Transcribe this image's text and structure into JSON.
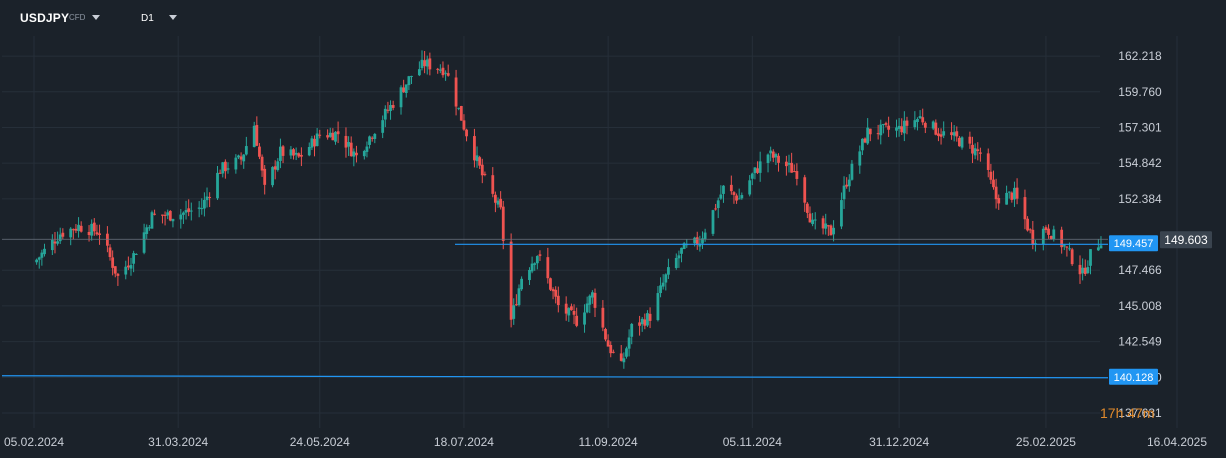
{
  "toolbar": {
    "symbol": "USDJPY",
    "symbol_type": "CFD",
    "timeframe": "D1"
  },
  "chart_data": {
    "type": "candlestick",
    "title": "",
    "xlabel": "",
    "ylabel": "",
    "ylim": [
      136.6,
      163.6
    ],
    "y_ticks": [
      "162.218",
      "159.760",
      "157.301",
      "154.842",
      "152.384",
      "147.466",
      "145.008",
      "142.549",
      "140.090",
      "137.631"
    ],
    "x_ticks": [
      "05.02.2024",
      "31.03.2024",
      "24.05.2024",
      "18.07.2024",
      "11.09.2024",
      "05.11.2024",
      "31.12.2024",
      "25.02.2025",
      "16.04.2025"
    ],
    "current_price": "149.603",
    "horizontal_lines": [
      {
        "label": "149.457",
        "value": 149.457
      },
      {
        "label": "140.128",
        "value": 140.128
      }
    ],
    "colors": {
      "up": "#26a69a",
      "down": "#ef5350",
      "level": "#2196f3",
      "background": "#1b222a"
    },
    "close_path": [
      [
        "05.02.2024",
        148.0
      ],
      [
        "15.02.2024",
        150.0
      ],
      [
        "22.02.2024",
        150.5
      ],
      [
        "01.03.2024",
        150.1
      ],
      [
        "08.03.2024",
        147.0
      ],
      [
        "14.03.2024",
        148.5
      ],
      [
        "21.03.2024",
        151.2
      ],
      [
        "31.03.2024",
        151.3
      ],
      [
        "09.04.2024",
        151.8
      ],
      [
        "16.04.2024",
        154.4
      ],
      [
        "24.04.2024",
        155.1
      ],
      [
        "29.04.2024",
        157.5
      ],
      [
        "03.05.2024",
        153.0
      ],
      [
        "09.05.2024",
        155.6
      ],
      [
        "16.05.2024",
        155.2
      ],
      [
        "24.05.2024",
        156.8
      ],
      [
        "31.05.2024",
        156.9
      ],
      [
        "07.06.2024",
        155.3
      ],
      [
        "14.06.2024",
        157.2
      ],
      [
        "21.06.2024",
        159.0
      ],
      [
        "28.06.2024",
        160.9
      ],
      [
        "03.07.2024",
        161.7
      ],
      [
        "11.07.2024",
        161.3
      ],
      [
        "18.07.2024",
        157.4
      ],
      [
        "25.07.2024",
        154.0
      ],
      [
        "01.08.2024",
        151.5
      ],
      [
        "05.08.2024",
        144.0
      ],
      [
        "09.08.2024",
        147.0
      ],
      [
        "15.08.2024",
        148.6
      ],
      [
        "23.08.2024",
        145.0
      ],
      [
        "30.08.2024",
        144.0
      ],
      [
        "05.09.2024",
        145.8
      ],
      [
        "11.09.2024",
        142.3
      ],
      [
        "16.09.2024",
        140.8
      ],
      [
        "20.09.2024",
        143.5
      ],
      [
        "27.09.2024",
        144.3
      ],
      [
        "03.10.2024",
        147.0
      ],
      [
        "09.10.2024",
        148.8
      ],
      [
        "16.10.2024",
        149.5
      ],
      [
        "25.10.2024",
        153.1
      ],
      [
        "31.10.2024",
        152.4
      ],
      [
        "05.11.2024",
        154.0
      ],
      [
        "11.11.2024",
        155.5
      ],
      [
        "15.11.2024",
        155.0
      ],
      [
        "22.11.2024",
        154.2
      ],
      [
        "28.11.2024",
        150.6
      ],
      [
        "05.12.2024",
        150.1
      ],
      [
        "11.12.2024",
        153.6
      ],
      [
        "19.12.2024",
        157.0
      ],
      [
        "31.12.2024",
        157.2
      ],
      [
        "08.01.2025",
        158.0
      ],
      [
        "15.01.2025",
        157.0
      ],
      [
        "22.01.2025",
        156.5
      ],
      [
        "31.01.2025",
        155.5
      ],
      [
        "06.02.2025",
        152.4
      ],
      [
        "13.02.2025",
        152.7
      ],
      [
        "20.02.2025",
        149.6
      ],
      [
        "25.02.2025",
        150.4
      ],
      [
        "04.03.2025",
        149.1
      ],
      [
        "11.03.2025",
        147.2
      ],
      [
        "14.03.2025",
        148.5
      ],
      [
        "18.03.2025",
        149.6
      ]
    ]
  },
  "countdown": {
    "hours": "17",
    "hours_unit": "h",
    "minutes": "47",
    "minutes_unit": "m"
  }
}
